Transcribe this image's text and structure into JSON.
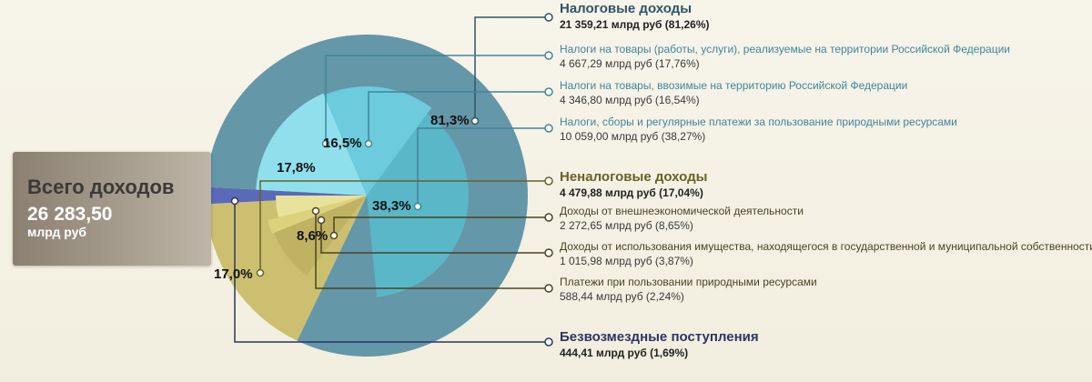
{
  "total": {
    "title": "Всего доходов",
    "value": "26 283,50",
    "unit": "млрд руб"
  },
  "colors": {
    "tax_outer": "#6497a8",
    "tax_goods_rf": "#8fe0ec",
    "tax_goods_import": "#6ccbdc",
    "tax_natural": "#5ab7c8",
    "nontax_outer": "#ccc070",
    "nontax_foreign": "#bfb263",
    "nontax_property": "#e9e29b",
    "nontax_payments": "#dcd27c",
    "gratuitous": "#5a69b8",
    "label_tax_major": "#2f5568",
    "label_tax_sub": "#3f8699",
    "label_nontax_major": "#6a6124",
    "label_nontax_sub": "#4a4423",
    "label_gratuitous": "#2c3462"
  },
  "legend": [
    {
      "id": "tax",
      "label": "Налоговые доходы",
      "value": "21 359,21 млрд руб (81,26%)",
      "major": true,
      "color_key": "label_tax_major"
    },
    {
      "id": "tax-goods-rf",
      "label": "Налоги на товары (работы, услуги), реализуемые на территории Российской Федерации",
      "value": "4 667,29 млрд руб (17,76%)",
      "major": false,
      "color_key": "label_tax_sub"
    },
    {
      "id": "tax-goods-import",
      "label": "Налоги на товары, ввозимые на территорию Российской Федерации",
      "value": "4 346,80 млрд руб (16,54%)",
      "major": false,
      "color_key": "label_tax_sub"
    },
    {
      "id": "tax-natural",
      "label": "Налоги, сборы и регулярные платежи за пользование природными ресурсами",
      "value": "10 059,00 млрд руб (38,27%)",
      "major": false,
      "color_key": "label_tax_sub"
    },
    {
      "id": "nontax",
      "label": "Неналоговые доходы",
      "value": "4 479,88 млрд руб (17,04%)",
      "major": true,
      "color_key": "label_nontax_major"
    },
    {
      "id": "nontax-foreign",
      "label": "Доходы от внешнеэкономической деятельности",
      "value": "2 272,65 млрд руб (8,65%)",
      "major": false,
      "color_key": "label_nontax_sub"
    },
    {
      "id": "nontax-property",
      "label": "Доходы от использования имущества, находящегося в государственной и муниципальной собственности",
      "value": "1 015,98 млрд руб (3,87%)",
      "major": false,
      "color_key": "label_nontax_sub"
    },
    {
      "id": "nontax-payments",
      "label": "Платежи при пользовании природными ресурсами",
      "value": "588,44 млрд руб (2,24%)",
      "major": false,
      "color_key": "label_nontax_sub"
    },
    {
      "id": "gratuitous",
      "label": "Безвозмездные поступления",
      "value": "444,41 млрд руб (1,69%)",
      "major": true,
      "color_key": "label_gratuitous"
    }
  ],
  "chart_data": {
    "type": "pie",
    "title": "",
    "unit": "млрд руб",
    "slices": [
      {
        "id": "tax",
        "label": "Налоговые доходы",
        "value": 21359.21,
        "percent": 81.26,
        "display_pct": "81,3%",
        "color_key": "tax_outer"
      },
      {
        "id": "nontax",
        "label": "Неналоговые доходы",
        "value": 4479.88,
        "percent": 17.04,
        "display_pct": "17,0%",
        "color_key": "nontax_outer"
      },
      {
        "id": "gratuitous",
        "label": "Безвозмездные поступления",
        "value": 444.41,
        "percent": 1.69,
        "display_pct": "",
        "color_key": "gratuitous"
      }
    ],
    "sub_slices": [
      {
        "id": "tax-goods-rf",
        "parent": "tax",
        "label": "Налоги на товары (работы, услуги), реализуемые на территории Российской Федерации",
        "value": 4667.29,
        "percent": 17.76,
        "display_pct": "17,8%",
        "color_key": "tax_goods_rf"
      },
      {
        "id": "tax-goods-import",
        "parent": "tax",
        "label": "Налоги на товары, ввозимые на территорию Российской Федерации",
        "value": 4346.8,
        "percent": 16.54,
        "display_pct": "16,5%",
        "color_key": "tax_goods_import"
      },
      {
        "id": "tax-natural",
        "parent": "tax",
        "label": "Налоги, сборы и регулярные платежи за пользование природными ресурсами",
        "value": 10059.0,
        "percent": 38.27,
        "display_pct": "38,3%",
        "color_key": "tax_natural"
      },
      {
        "id": "nontax-foreign",
        "parent": "nontax",
        "label": "Доходы от внешнеэкономической деятельности",
        "value": 2272.65,
        "percent": 8.65,
        "display_pct": "8,6%",
        "color_key": "nontax_foreign"
      },
      {
        "id": "nontax-property",
        "parent": "nontax",
        "label": "Доходы от использования имущества, находящегося в государственной и муниципальной собственности",
        "value": 1015.98,
        "percent": 3.87,
        "display_pct": "",
        "color_key": "nontax_property"
      },
      {
        "id": "nontax-payments",
        "parent": "nontax",
        "label": "Платежи при пользовании природными ресурсами",
        "value": 588.44,
        "percent": 2.24,
        "display_pct": "",
        "color_key": "nontax_payments"
      }
    ]
  }
}
